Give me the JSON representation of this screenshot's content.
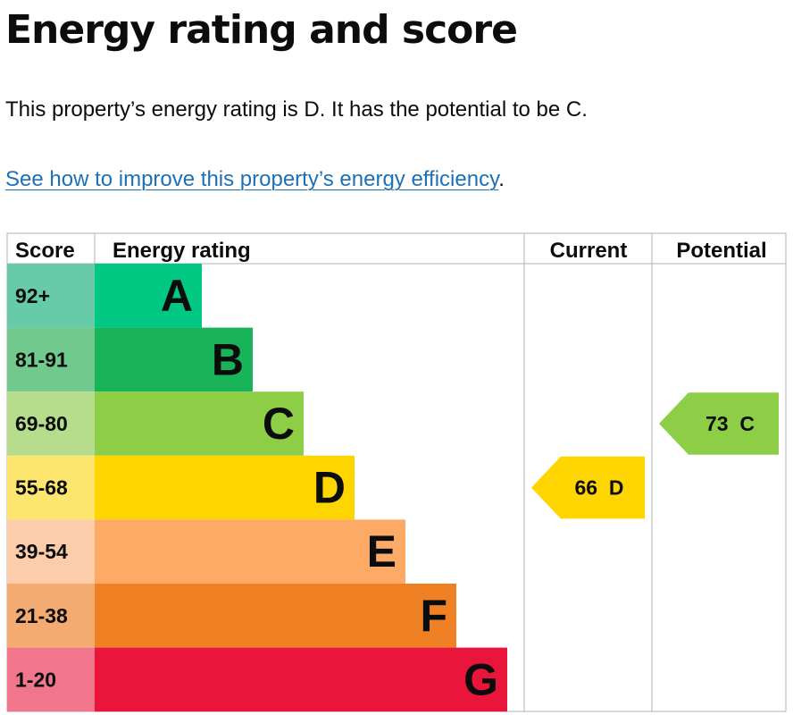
{
  "page": {
    "title": "Energy rating and score",
    "summary": "This property’s energy rating is D. It has the potential to be C.",
    "link_text": "See how to improve this property’s energy efficiency",
    "link_suffix": "."
  },
  "chart_data": {
    "type": "bar",
    "headers": {
      "score": "Score",
      "rating": "Energy rating",
      "current": "Current",
      "potential": "Potential"
    },
    "bands": [
      {
        "letter": "A",
        "range": "92+",
        "color": "#00c781",
        "score_bg": "#67cbaa"
      },
      {
        "letter": "B",
        "range": "81-91",
        "color": "#19b459",
        "score_bg": "#72c98e"
      },
      {
        "letter": "C",
        "range": "69-80",
        "color": "#8dce46",
        "score_bg": "#b5dd8c"
      },
      {
        "letter": "D",
        "range": "55-68",
        "color": "#ffd500",
        "score_bg": "#fde66e"
      },
      {
        "letter": "E",
        "range": "39-54",
        "color": "#fcaa65",
        "score_bg": "#fcccab"
      },
      {
        "letter": "F",
        "range": "21-38",
        "color": "#ef8023",
        "score_bg": "#f4ab72"
      },
      {
        "letter": "G",
        "range": "1-20",
        "color": "#e9153b",
        "score_bg": "#f2768b"
      }
    ],
    "current": {
      "value": 66,
      "letter": "D",
      "label": "66 D",
      "color": "#ffd500"
    },
    "potential": {
      "value": 73,
      "letter": "C",
      "label": "73 C",
      "color": "#8dce46"
    }
  }
}
